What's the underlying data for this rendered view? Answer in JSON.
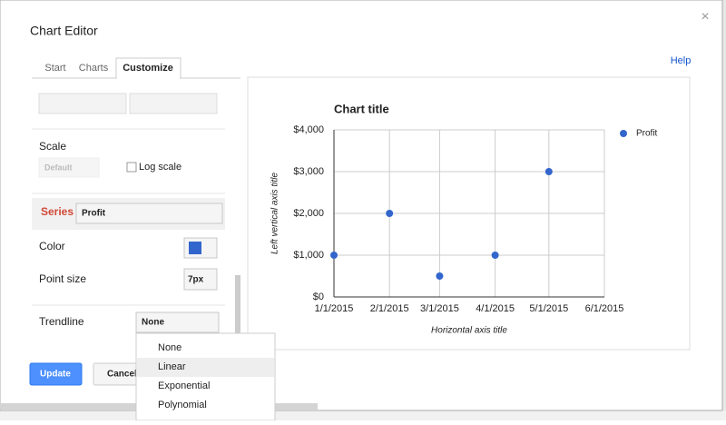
{
  "dialog": {
    "title": "Chart Editor",
    "close": "×",
    "help": "Help",
    "tabs": [
      "Start",
      "Charts",
      "Customize"
    ]
  },
  "panel": {
    "scale_label": "Scale",
    "scale_value": "Default",
    "log_scale": "Log scale",
    "series_label": "Series",
    "series_value": "Profit",
    "color_label": "Color",
    "point_size_label": "Point size",
    "point_size_value": "7px",
    "trendline_label": "Trendline",
    "trendline_value": "None",
    "trendline_options": [
      "None",
      "Linear",
      "Exponential",
      "Polynomial"
    ]
  },
  "buttons": {
    "update": "Update",
    "cancel": "Cancel"
  },
  "chart_data": {
    "type": "scatter",
    "title": "Chart title",
    "x_label": "Horizontal axis title",
    "y_label": "Left vertical axis title",
    "x": [
      "1/1/2015",
      "2/1/2015",
      "3/1/2015",
      "4/1/2015",
      "5/1/2015"
    ],
    "series": [
      {
        "name": "Profit",
        "color": "#3366cc",
        "values": [
          1000,
          2000,
          500,
          1000,
          3000
        ]
      }
    ],
    "xlim": [
      "1/1/2015",
      "6/1/2015"
    ],
    "xticks": [
      "1/1/2015",
      "2/1/2015",
      "3/1/2015",
      "4/1/2015",
      "5/1/2015",
      "6/1/2015"
    ],
    "ylim": [
      0,
      4000
    ],
    "yticks": [
      {
        "value": 0,
        "label": "$0"
      },
      {
        "value": 1000,
        "label": "$1,000"
      },
      {
        "value": 2000,
        "label": "$2,000"
      },
      {
        "value": 3000,
        "label": "$3,000"
      },
      {
        "value": 4000,
        "label": "$4,000"
      }
    ],
    "grid": true,
    "legend": "right"
  }
}
